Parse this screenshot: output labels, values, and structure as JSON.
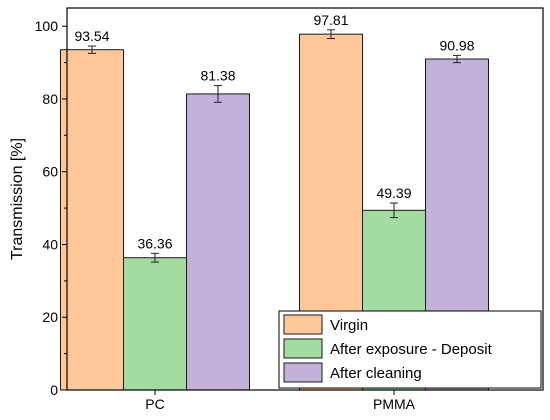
{
  "chart_data": {
    "type": "bar",
    "ylabel": "Transmission [%]",
    "xlabel": "",
    "ylim": [
      0,
      105
    ],
    "yticks": [
      0,
      20,
      40,
      60,
      80,
      100
    ],
    "categories": [
      "PC",
      "PMMA"
    ],
    "series": [
      {
        "name": "Virgin",
        "color": "#FFC89A",
        "values": [
          93.54,
          97.81
        ],
        "errors": [
          1.0,
          1.2
        ],
        "labels": [
          "93.54",
          "97.81"
        ]
      },
      {
        "name": "After exposure - Deposit",
        "color": "#A3DBA1",
        "values": [
          36.36,
          49.39
        ],
        "errors": [
          1.2,
          2.0
        ],
        "labels": [
          "36.36",
          "49.39"
        ]
      },
      {
        "name": "After cleaning",
        "color": "#C2B2DA",
        "values": [
          81.38,
          90.98
        ],
        "errors": [
          2.3,
          1.0
        ],
        "labels": [
          "81.38",
          "90.98"
        ]
      }
    ],
    "legend_position": "bottom-right",
    "grid": false
  }
}
